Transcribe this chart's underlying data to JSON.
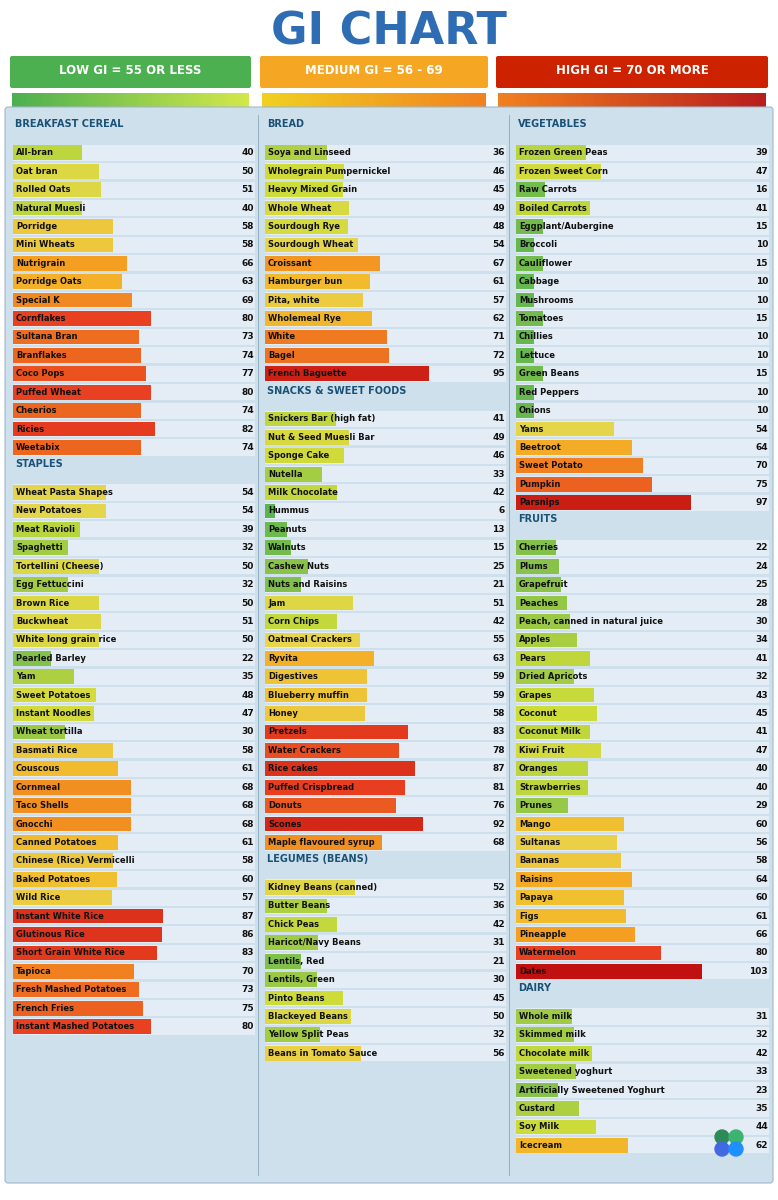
{
  "title": "GI CHART",
  "title_color": "#2e6db4",
  "legend_labels": [
    "LOW GI = 55 OR LESS",
    "MEDIUM GI = 56 - 69",
    "HIGH GI = 70 OR MORE"
  ],
  "legend_colors": [
    "#4caf50",
    "#f5a623",
    "#cc2200"
  ],
  "col1_sections": [
    {
      "header": "BREAKFAST CEREAL",
      "items": [
        [
          "All-bran",
          40
        ],
        [
          "Oat bran",
          50
        ],
        [
          "Rolled Oats",
          51
        ],
        [
          "Natural Muesli",
          40
        ],
        [
          "Porridge",
          58
        ],
        [
          "Mini Wheats",
          58
        ],
        [
          "Nutrigrain",
          66
        ],
        [
          "Porridge Oats",
          63
        ],
        [
          "Special K",
          69
        ],
        [
          "Cornflakes",
          80
        ],
        [
          "Sultana Bran",
          73
        ],
        [
          "Branflakes",
          74
        ],
        [
          "Coco Pops",
          77
        ],
        [
          "Puffed Wheat",
          80
        ],
        [
          "Cheerios",
          74
        ],
        [
          "Ricies",
          82
        ],
        [
          "Weetabix",
          74
        ]
      ]
    },
    {
      "header": "STAPLES",
      "items": [
        [
          "Wheat Pasta Shapes",
          54
        ],
        [
          "New Potatoes",
          54
        ],
        [
          "Meat Ravioli",
          39
        ],
        [
          "Spaghetti",
          32
        ],
        [
          "Tortellini (Cheese)",
          50
        ],
        [
          "Egg Fettuccini",
          32
        ],
        [
          "Brown Rice",
          50
        ],
        [
          "Buckwheat",
          51
        ],
        [
          "White long grain rice",
          50
        ],
        [
          "Pearled Barley",
          22
        ],
        [
          "Yam",
          35
        ],
        [
          "Sweet Potatoes",
          48
        ],
        [
          "Instant Noodles",
          47
        ],
        [
          "Wheat tortilla",
          30
        ],
        [
          "Basmati Rice",
          58
        ],
        [
          "Couscous",
          61
        ],
        [
          "Cornmeal",
          68
        ],
        [
          "Taco Shells",
          68
        ],
        [
          "Gnocchi",
          68
        ],
        [
          "Canned Potatoes",
          61
        ],
        [
          "Chinese (Rice) Vermicelli",
          58
        ],
        [
          "Baked Potatoes",
          60
        ],
        [
          "Wild Rice",
          57
        ],
        [
          "Instant White Rice",
          87
        ],
        [
          "Glutinous Rice",
          86
        ],
        [
          "Short Grain White Rice",
          83
        ],
        [
          "Tapioca",
          70
        ],
        [
          "Fresh Mashed Potatoes",
          73
        ],
        [
          "French Fries",
          75
        ],
        [
          "Instant Mashed Potatoes",
          80
        ]
      ]
    }
  ],
  "col2_sections": [
    {
      "header": "BREAD",
      "items": [
        [
          "Soya and Linseed",
          36
        ],
        [
          "Wholegrain Pumpernickel",
          46
        ],
        [
          "Heavy Mixed Grain",
          45
        ],
        [
          "Whole Wheat",
          49
        ],
        [
          "Sourdough Rye",
          48
        ],
        [
          "Sourdough Wheat",
          54
        ],
        [
          "Croissant",
          67
        ],
        [
          "Hamburger bun",
          61
        ],
        [
          "Pita, white",
          57
        ],
        [
          "Wholemeal Rye",
          62
        ],
        [
          "White",
          71
        ],
        [
          "Bagel",
          72
        ],
        [
          "French Baguette",
          95
        ]
      ]
    },
    {
      "header": "SNACKS & SWEET FOODS",
      "items": [
        [
          "Snickers Bar (high fat)",
          41
        ],
        [
          "Nut & Seed Muesli Bar",
          49
        ],
        [
          "Sponge Cake",
          46
        ],
        [
          "Nutella",
          33
        ],
        [
          "Milk Chocolate",
          42
        ],
        [
          "Hummus",
          6
        ],
        [
          "Peanuts",
          13
        ],
        [
          "Walnuts",
          15
        ],
        [
          "Cashew Nuts",
          25
        ],
        [
          "Nuts and Raisins",
          21
        ],
        [
          "Jam",
          51
        ],
        [
          "Corn Chips",
          42
        ],
        [
          "Oatmeal Crackers",
          55
        ],
        [
          "Ryvita",
          63
        ],
        [
          "Digestives",
          59
        ],
        [
          "Blueberry muffin",
          59
        ],
        [
          "Honey",
          58
        ],
        [
          "Pretzels",
          83
        ],
        [
          "Water Crackers",
          78
        ],
        [
          "Rice cakes",
          87
        ],
        [
          "Puffed Crispbread",
          81
        ],
        [
          "Donuts",
          76
        ],
        [
          "Scones",
          92
        ],
        [
          "Maple flavoured syrup",
          68
        ]
      ]
    },
    {
      "header": "LEGUMES (BEANS)",
      "items": [
        [
          "Kidney Beans (canned)",
          52
        ],
        [
          "Butter Beans",
          36
        ],
        [
          "Chick Peas",
          42
        ],
        [
          "Haricot/Navy Beans",
          31
        ],
        [
          "Lentils, Red",
          21
        ],
        [
          "Lentils, Green",
          30
        ],
        [
          "Pinto Beans",
          45
        ],
        [
          "Blackeyed Beans",
          50
        ],
        [
          "Yellow Split Peas",
          32
        ],
        [
          "Beans in Tomato Sauce",
          56
        ]
      ]
    }
  ],
  "col3_sections": [
    {
      "header": "VEGETABLES",
      "items": [
        [
          "Frozen Green Peas",
          39
        ],
        [
          "Frozen Sweet Corn",
          47
        ],
        [
          "Raw Carrots",
          16
        ],
        [
          "Boiled Carrots",
          41
        ],
        [
          "Eggplant/Aubergine",
          15
        ],
        [
          "Broccoli",
          10
        ],
        [
          "Cauliflower",
          15
        ],
        [
          "Cabbage",
          10
        ],
        [
          "Mushrooms",
          10
        ],
        [
          "Tomatoes",
          15
        ],
        [
          "Chillies",
          10
        ],
        [
          "Lettuce",
          10
        ],
        [
          "Green Beans",
          15
        ],
        [
          "Red Peppers",
          10
        ],
        [
          "Onions",
          10
        ],
        [
          "Yams",
          54
        ],
        [
          "Beetroot",
          64
        ],
        [
          "Sweet Potato",
          70
        ],
        [
          "Pumpkin",
          75
        ],
        [
          "Parsnips",
          97
        ]
      ]
    },
    {
      "header": "FRUITS",
      "items": [
        [
          "Cherries",
          22
        ],
        [
          "Plums",
          24
        ],
        [
          "Grapefruit",
          25
        ],
        [
          "Peaches",
          28
        ],
        [
          "Peach, canned in natural juice",
          30
        ],
        [
          "Apples",
          34
        ],
        [
          "Pears",
          41
        ],
        [
          "Dried Apricots",
          32
        ],
        [
          "Grapes",
          43
        ],
        [
          "Coconut",
          45
        ],
        [
          "Coconut Milk",
          41
        ],
        [
          "Kiwi Fruit",
          47
        ],
        [
          "Oranges",
          40
        ],
        [
          "Strawberries",
          40
        ],
        [
          "Prunes",
          29
        ],
        [
          "Mango",
          60
        ],
        [
          "Sultanas",
          56
        ],
        [
          "Bananas",
          58
        ],
        [
          "Raisins",
          64
        ],
        [
          "Papaya",
          60
        ],
        [
          "Figs",
          61
        ],
        [
          "Pineapple",
          66
        ],
        [
          "Watermelon",
          80
        ],
        [
          "Dates",
          103
        ]
      ]
    },
    {
      "header": "DAIRY",
      "items": [
        [
          "Whole milk",
          31
        ],
        [
          "Skimmed milk",
          32
        ],
        [
          "Chocolate milk",
          42
        ],
        [
          "Sweetened yoghurt",
          33
        ],
        [
          "Artificially Sweetened Yoghurt",
          23
        ],
        [
          "Custard",
          35
        ],
        [
          "Soy Milk",
          44
        ],
        [
          "Icecream",
          62
        ]
      ]
    }
  ],
  "bg_color": "#cfe0ed",
  "header_color": "#1a5276",
  "bar_max": 103
}
